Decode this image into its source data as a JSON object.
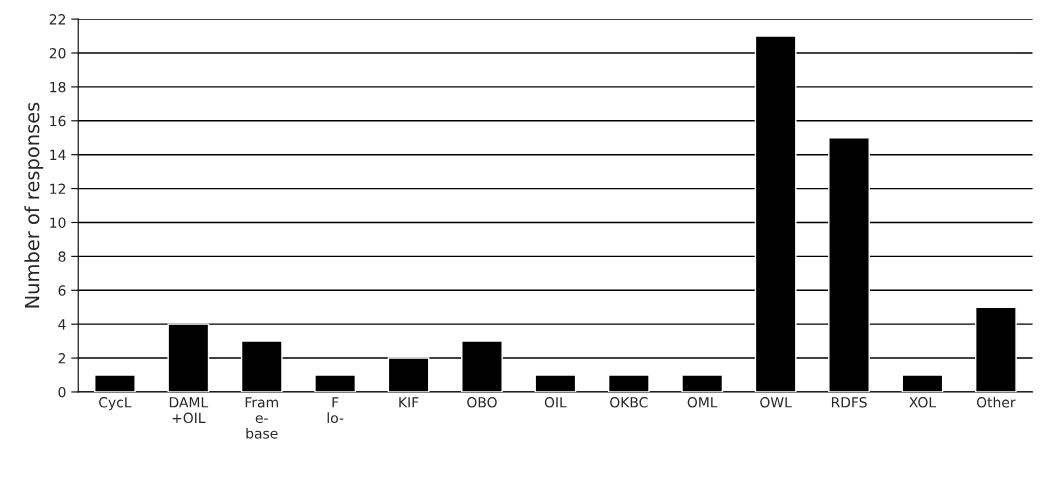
{
  "chart_data": {
    "type": "bar",
    "ylabel": "Number of responses",
    "categories": [
      "CycL",
      "DAML\n+OIL",
      "Fram\ne-\nbase",
      "F\nlo-",
      "KIF",
      "OBO",
      "OIL",
      "OKBC",
      "OML",
      "OWL",
      "RDFS",
      "XOL",
      "Other"
    ],
    "values": [
      1,
      4,
      3,
      1,
      2,
      3,
      1,
      1,
      1,
      21,
      15,
      1,
      5
    ],
    "color": "#000000",
    "ylim": [
      0,
      22
    ],
    "yticks": [
      0,
      2,
      4,
      6,
      8,
      10,
      12,
      14,
      16,
      18,
      20,
      22
    ],
    "grid": "y"
  }
}
